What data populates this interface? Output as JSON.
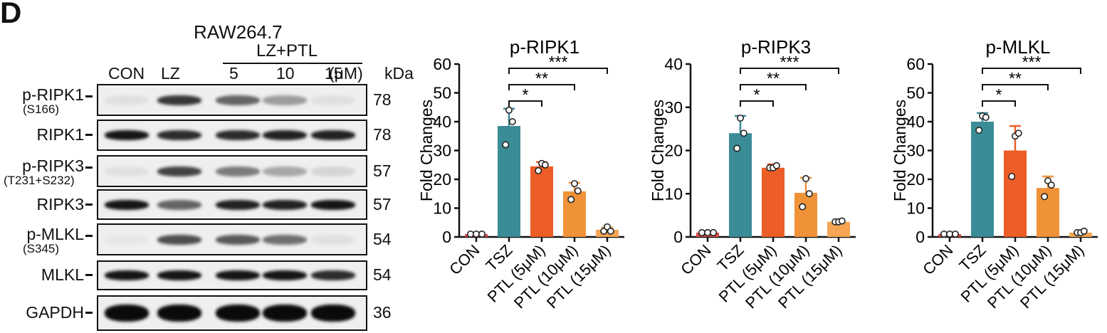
{
  "panel_letter": "D",
  "blot": {
    "cell_line": "RAW264.7",
    "treatment_group": "LZ+PTL",
    "lanes": [
      "CON",
      "LZ",
      "5",
      "10",
      "15"
    ],
    "unit_label": "(μM)",
    "kda_header": "kDa",
    "bands": [
      {
        "label": "p-RIPK1",
        "sublabel": "(S166)",
        "kda": "78",
        "intensity": [
          0.05,
          0.8,
          0.6,
          0.35,
          0.05
        ]
      },
      {
        "label": "RIPK1",
        "sublabel": "",
        "kda": "78",
        "intensity": [
          0.95,
          0.85,
          0.85,
          0.9,
          0.9
        ]
      },
      {
        "label": "p-RIPK3",
        "sublabel": "(T231+S232)",
        "kda": "57",
        "intensity": [
          0.05,
          0.75,
          0.5,
          0.3,
          0.1
        ]
      },
      {
        "label": "RIPK3",
        "sublabel": "",
        "kda": "57",
        "intensity": [
          0.95,
          0.6,
          0.9,
          0.9,
          0.95
        ]
      },
      {
        "label": "p-MLKL",
        "sublabel": "(S345)",
        "kda": "54",
        "intensity": [
          0.02,
          0.7,
          0.65,
          0.55,
          0.05
        ]
      },
      {
        "label": "MLKL",
        "sublabel": "",
        "kda": "54",
        "intensity": [
          0.95,
          0.95,
          0.95,
          0.95,
          0.85
        ]
      },
      {
        "label": "GAPDH",
        "sublabel": "",
        "kda": "36",
        "intensity": [
          1.0,
          1.0,
          1.0,
          1.0,
          1.0
        ]
      }
    ]
  },
  "chart_data": [
    {
      "type": "bar",
      "title": "p-RIPK1",
      "ylabel": "Fold Changes",
      "ylim": [
        0,
        60
      ],
      "yticks": [
        0,
        10,
        20,
        30,
        40,
        50,
        60
      ],
      "categories": [
        "CON",
        "TSZ",
        "PTL (5μM)",
        "PTL (10μM)",
        "PTL (15μM)"
      ],
      "values": [
        1,
        38.5,
        24.5,
        15.8,
        2.5
      ],
      "errors": [
        0.2,
        6,
        1.5,
        3,
        0.8
      ],
      "points": [
        [
          1,
          1,
          1
        ],
        [
          32,
          44,
          40
        ],
        [
          23,
          25.5,
          25
        ],
        [
          13,
          18.5,
          16
        ],
        [
          2,
          3.5,
          2
        ]
      ],
      "colors": [
        "#d64c46",
        "#3a8c97",
        "#ec5d28",
        "#f09238",
        "#f5a553"
      ],
      "significance": [
        {
          "to": "PTL (5μM)",
          "label": "*"
        },
        {
          "to": "PTL (10μM)",
          "label": "**"
        },
        {
          "to": "PTL (15μM)",
          "label": "***"
        }
      ]
    },
    {
      "type": "bar",
      "title": "p-RIPK3",
      "ylabel": "Fold Changes",
      "ylim": [
        0,
        40
      ],
      "yticks": [
        0,
        10,
        20,
        30,
        40
      ],
      "categories": [
        "CON",
        "TSZ",
        "PTL (5μM)",
        "PTL (10μM)",
        "PTL (15μM)"
      ],
      "values": [
        1,
        24,
        16,
        10.2,
        3.5
      ],
      "errors": [
        0.2,
        4,
        0.8,
        3.5,
        0.3
      ],
      "points": [
        [
          1,
          1,
          1
        ],
        [
          20.5,
          27.5,
          24
        ],
        [
          16,
          16,
          16.5
        ],
        [
          7,
          13.5,
          10
        ],
        [
          3.5,
          3.5,
          3.7
        ]
      ],
      "colors": [
        "#d64c46",
        "#3a8c97",
        "#ec5d28",
        "#f09238",
        "#f5a553"
      ],
      "significance": [
        {
          "to": "PTL (5μM)",
          "label": "*"
        },
        {
          "to": "PTL (10μM)",
          "label": "**"
        },
        {
          "to": "PTL (15μM)",
          "label": "***"
        }
      ]
    },
    {
      "type": "bar",
      "title": "p-MLKL",
      "ylabel": "Fold Changes",
      "ylim": [
        0,
        60
      ],
      "yticks": [
        0,
        10,
        20,
        30,
        40,
        50,
        60
      ],
      "categories": [
        "CON",
        "TSZ",
        "PTL (5μM)",
        "PTL (10μM)",
        "PTL (15μM)"
      ],
      "values": [
        1,
        40,
        30,
        17,
        1.5
      ],
      "errors": [
        0.2,
        3,
        8.5,
        4,
        0.3
      ],
      "points": [
        [
          1,
          1,
          1
        ],
        [
          37,
          42,
          41.5
        ],
        [
          21,
          35,
          36
        ],
        [
          14,
          19.5,
          18
        ],
        [
          1.5,
          1.5,
          2
        ]
      ],
      "colors": [
        "#d64c46",
        "#3a8c97",
        "#ec5d28",
        "#f09238",
        "#f5a553"
      ],
      "significance": [
        {
          "to": "PTL (5μM)",
          "label": "*"
        },
        {
          "to": "PTL (10μM)",
          "label": "**"
        },
        {
          "to": "PTL (15μM)",
          "label": "***"
        }
      ]
    }
  ]
}
